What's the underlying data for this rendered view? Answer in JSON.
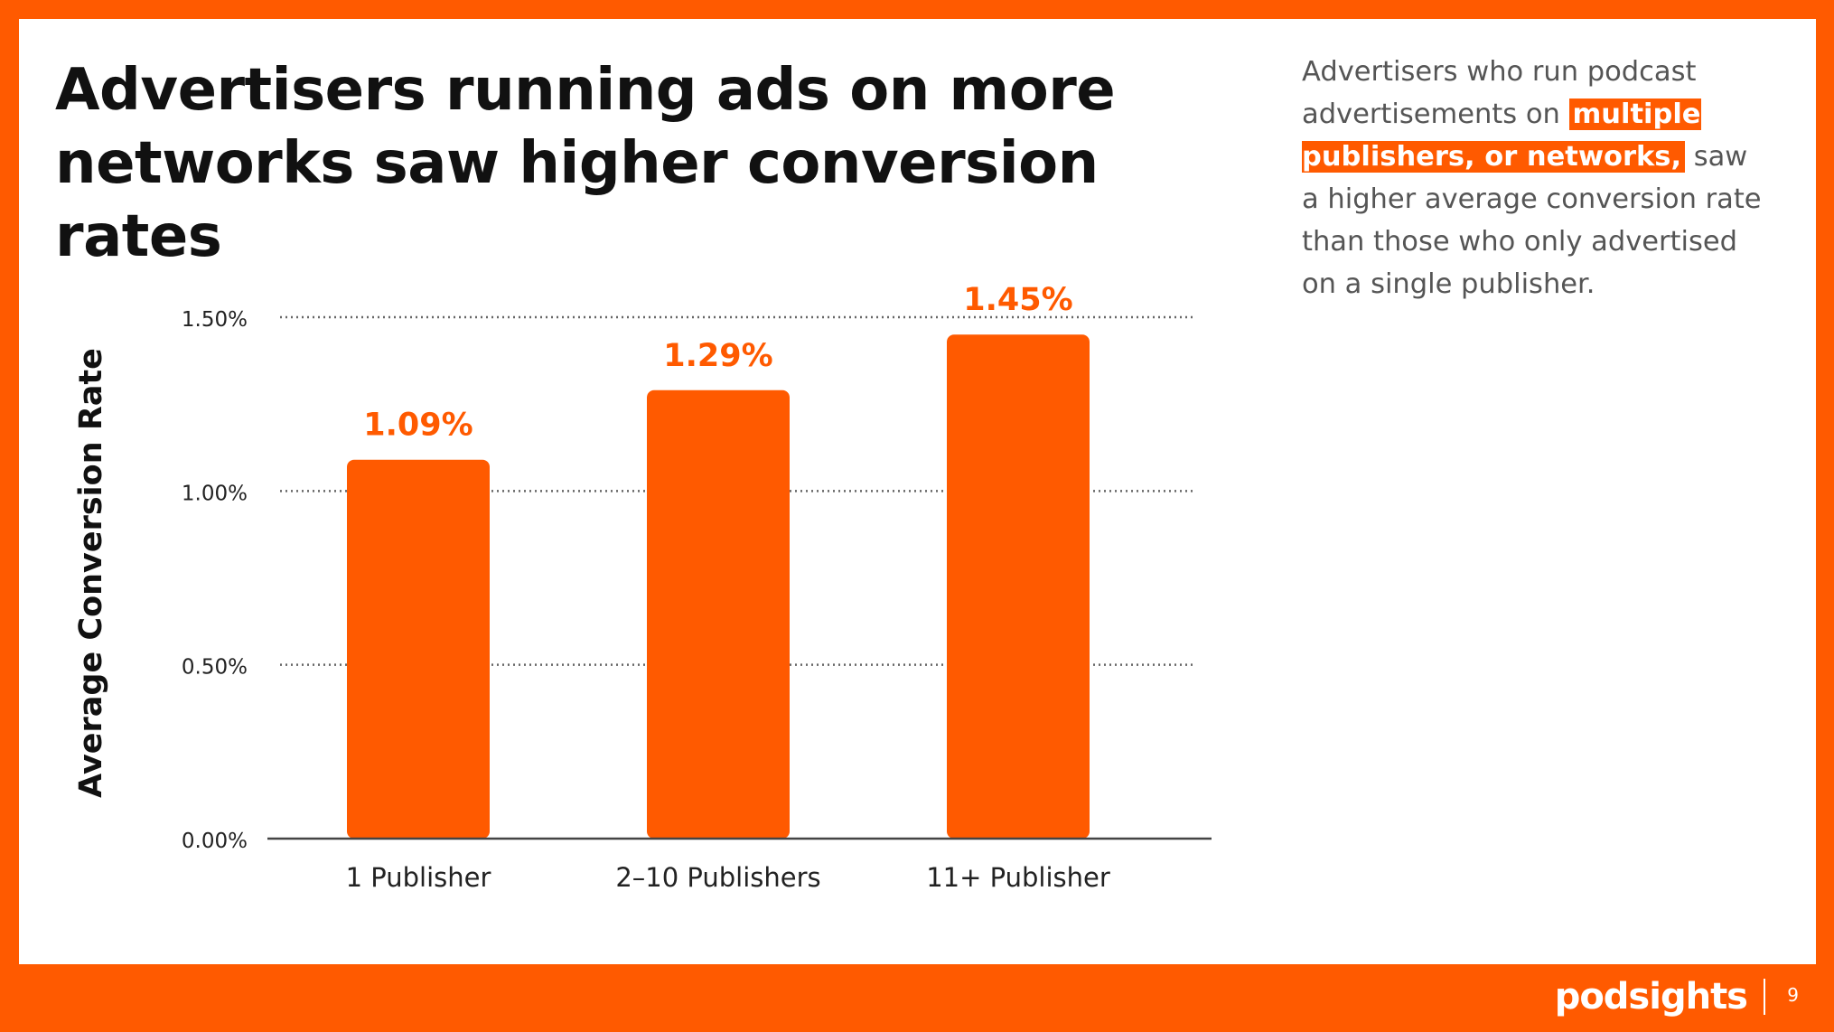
{
  "slide": {
    "title": "Advertisers running ads on more networks saw higher conversion rates",
    "side_text": {
      "before": "Advertisers who run podcast advertisements on ",
      "highlight": "multiple publishers, or networks,",
      "after": " saw a higher average conversion rate than those who only advertised on a single publisher."
    },
    "brand": "podsights",
    "page_number": "9"
  },
  "colors": {
    "accent": "#FF5A00",
    "background": "#FFFFFF",
    "title": "#111111",
    "body_text": "#555555",
    "gridline": "#666666"
  },
  "chart_data": {
    "type": "bar",
    "title": "",
    "xlabel": "",
    "ylabel": "Average Conversion Rate",
    "categories": [
      "1 Publisher",
      "2–10 Publishers",
      "11+ Publisher"
    ],
    "values": [
      1.09,
      1.29,
      1.45
    ],
    "value_labels": [
      "1.09%",
      "1.29%",
      "1.45%"
    ],
    "ylim": [
      0,
      1.5
    ],
    "yticks": [
      0,
      0.5,
      1.0,
      1.5
    ],
    "ytick_labels": [
      "0.00%",
      "0.50%",
      "1.00%",
      "1.50%"
    ],
    "grid": true,
    "legend": "none"
  }
}
